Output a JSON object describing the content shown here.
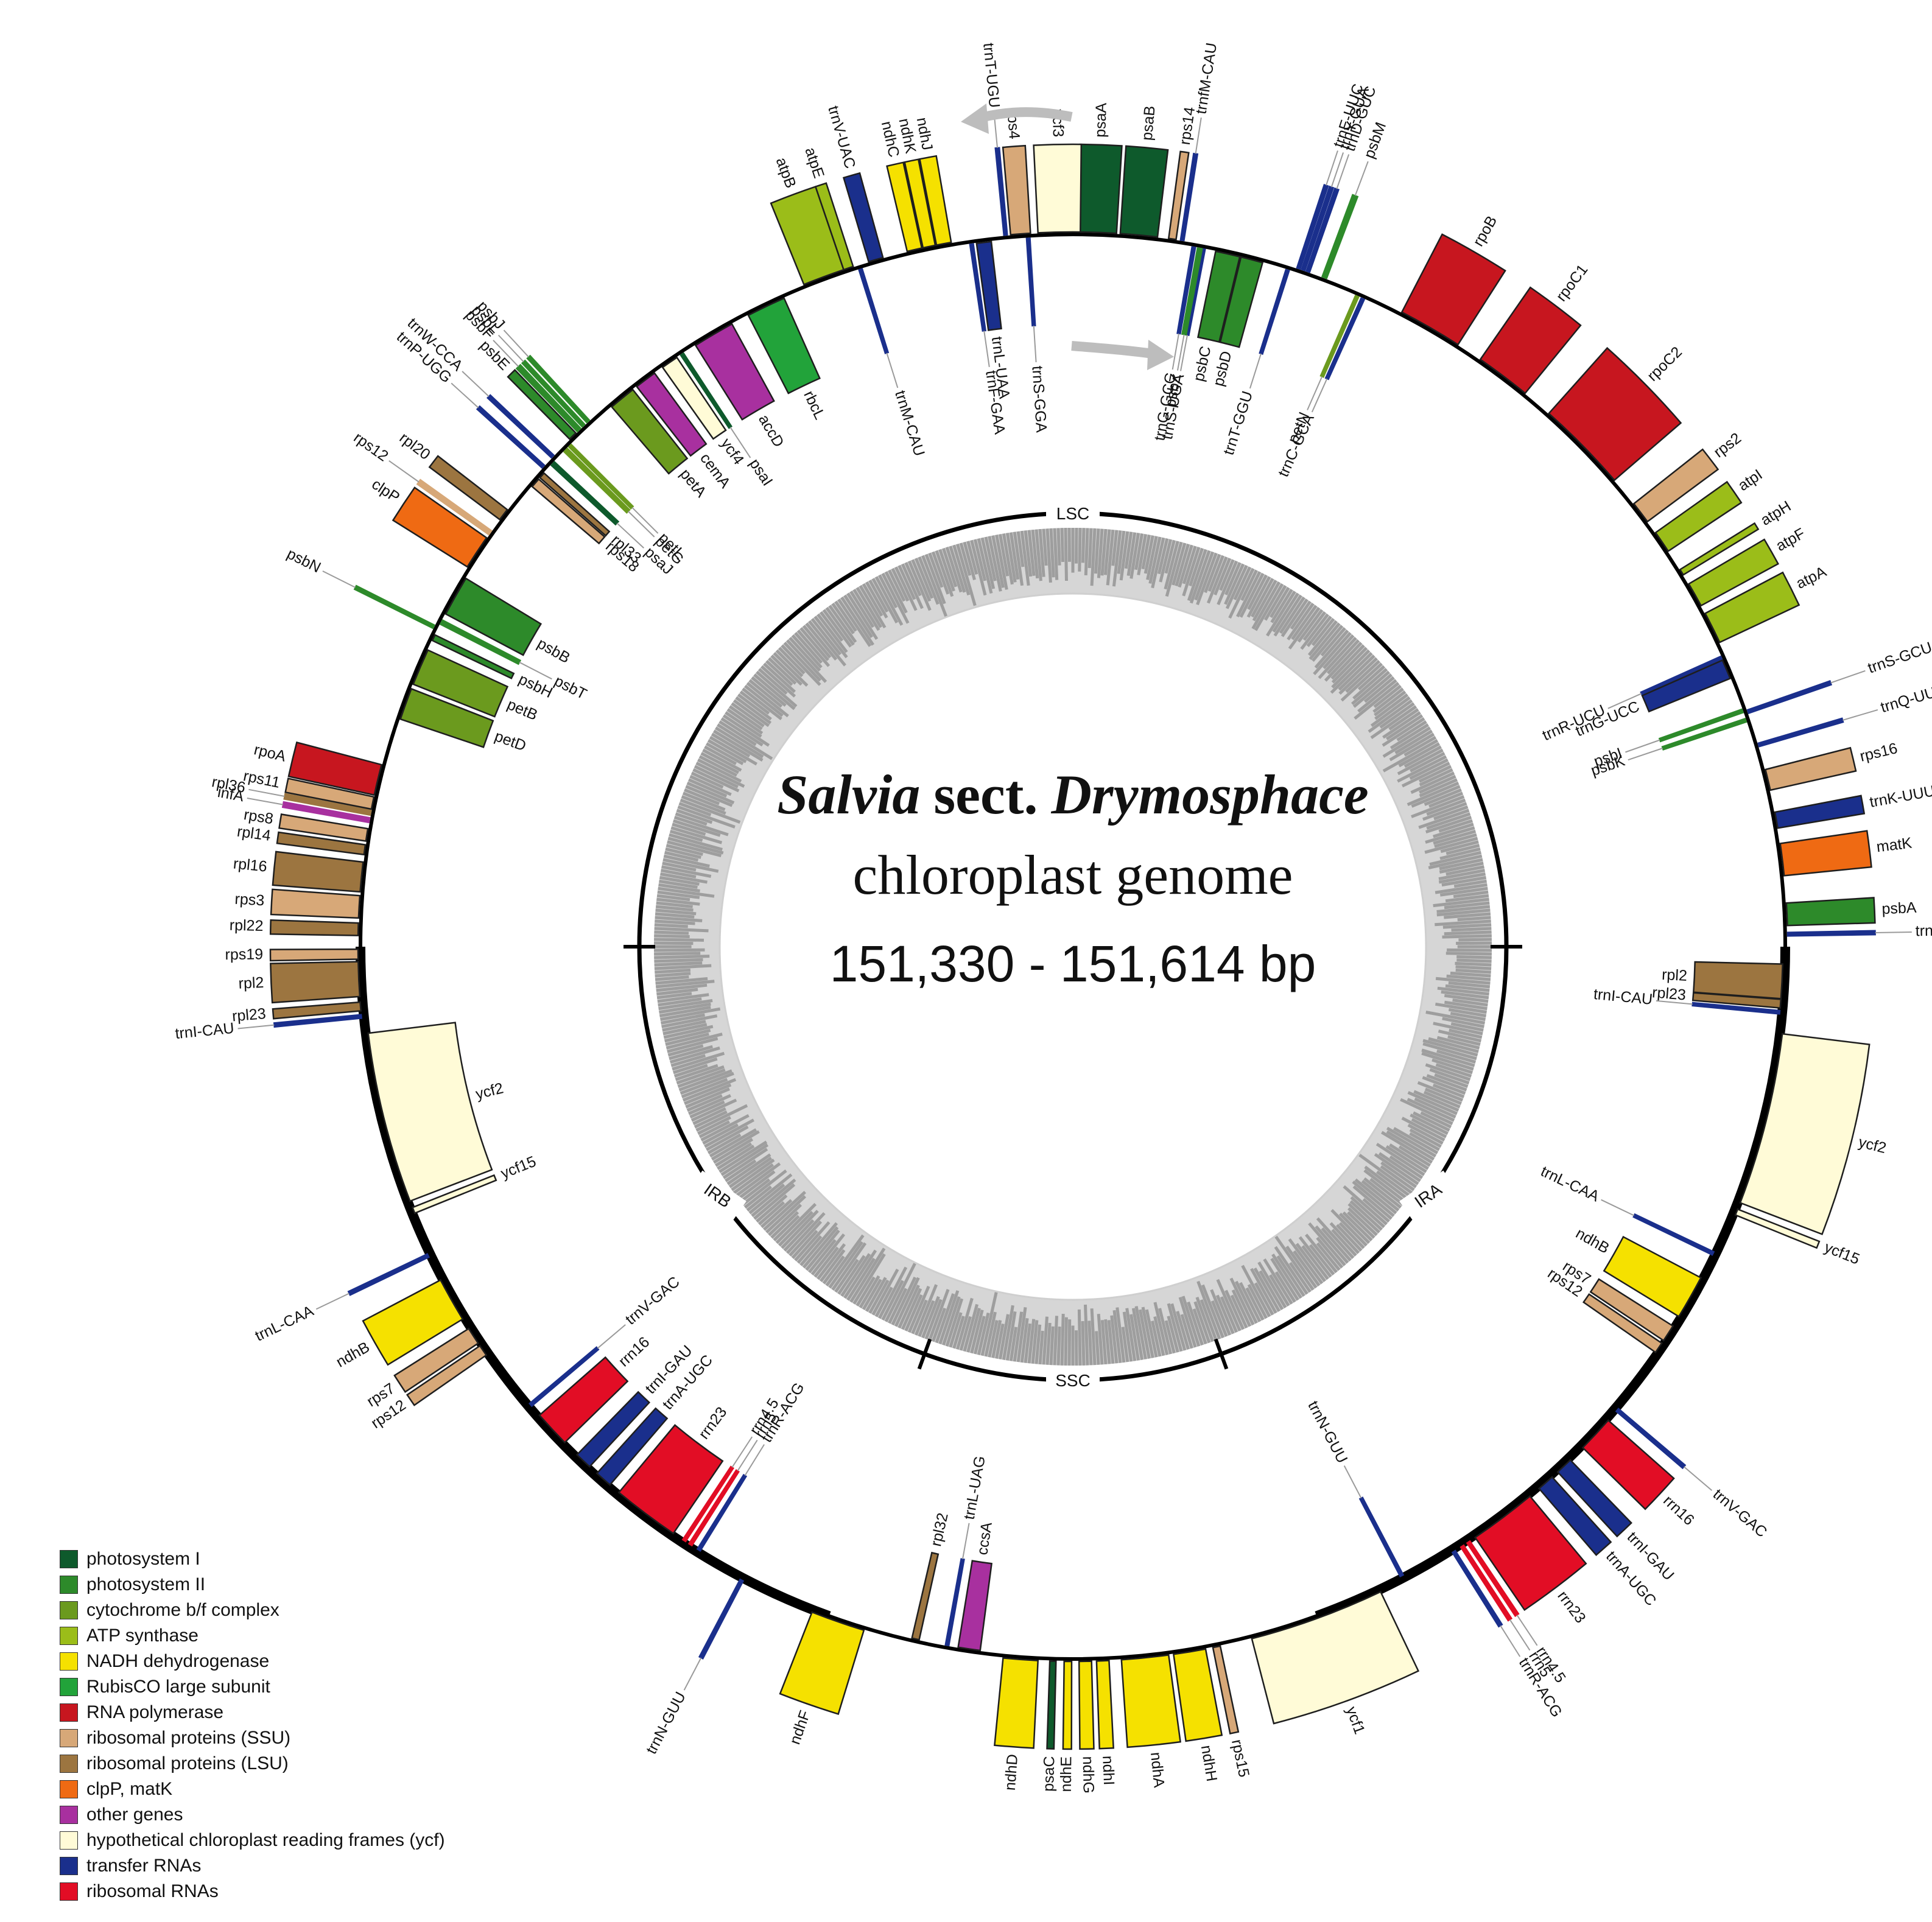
{
  "title": {
    "genus": "Salvia",
    "sect": "sect.",
    "section_name": "Drymosphace",
    "line2": "chloroplast genome",
    "line3": "151,330 - 151,614 bp"
  },
  "regions": [
    "LSC",
    "IRA",
    "SSC",
    "IRB"
  ],
  "legend": [
    {
      "label": "photosystem I",
      "color": "#0e5a2c"
    },
    {
      "label": "photosystem II",
      "color": "#2d8a2a"
    },
    {
      "label": "cytochrome b/f complex",
      "color": "#6b9a1e"
    },
    {
      "label": "ATP synthase",
      "color": "#9bbd19"
    },
    {
      "label": "NADH dehydrogenase",
      "color": "#f5e100"
    },
    {
      "label": "RubisCO large subunit",
      "color": "#22a33a"
    },
    {
      "label": "RNA polymerase",
      "color": "#c7161f"
    },
    {
      "label": "ribosomal proteins (SSU)",
      "color": "#d7a878"
    },
    {
      "label": "ribosomal proteins (LSU)",
      "color": "#9c7540"
    },
    {
      "label": "clpP, matK",
      "color": "#ef6a13"
    },
    {
      "label": "other genes",
      "color": "#a8309f"
    },
    {
      "label": "hypothetical chloroplast reading frames (ycf)",
      "color": "#fffbd7"
    },
    {
      "label": "transfer RNAs",
      "color": "#1a2f8c"
    },
    {
      "label": "ribosomal RNAs",
      "color": "#e20d25"
    }
  ],
  "genes": [
    {
      "name": "psaA",
      "cat": 0,
      "a": 2.0,
      "w": 3.0,
      "side": "out"
    },
    {
      "name": "psaB",
      "cat": 0,
      "a": 5.3,
      "w": 3.0,
      "side": "out"
    },
    {
      "name": "rps14",
      "cat": 7,
      "a": 8.0,
      "w": 0.6,
      "side": "out"
    },
    {
      "name": "trnfM-CAU",
      "cat": 12,
      "a": 8.8,
      "w": 0.3,
      "side": "out"
    },
    {
      "name": "trnS-UGA",
      "cat": 12,
      "a": 10.6,
      "w": 0.3,
      "side": "in"
    },
    {
      "name": "trnG-GCC",
      "cat": 12,
      "a": 9.8,
      "w": 0.3,
      "side": "in"
    },
    {
      "name": "psbZ",
      "cat": 1,
      "a": 10.3,
      "w": 0.4,
      "side": "in"
    },
    {
      "name": "psbC",
      "cat": 1,
      "a": 12.6,
      "w": 2.0,
      "side": "in"
    },
    {
      "name": "psbD",
      "cat": 1,
      "a": 14.6,
      "w": 1.8,
      "side": "in"
    },
    {
      "name": "trnT-GGU",
      "cat": 12,
      "a": 17.6,
      "w": 0.3,
      "side": "in"
    },
    {
      "name": "trnE-UUC",
      "cat": 12,
      "a": 18.4,
      "w": 0.3,
      "side": "out"
    },
    {
      "name": "trnY-GUA",
      "cat": 12,
      "a": 18.8,
      "w": 0.3,
      "side": "out"
    },
    {
      "name": "trnD-GUC",
      "cat": 12,
      "a": 19.2,
      "w": 0.3,
      "side": "out"
    },
    {
      "name": "psbM",
      "cat": 1,
      "a": 20.6,
      "w": 0.4,
      "side": "out"
    },
    {
      "name": "petN",
      "cat": 2,
      "a": 23.6,
      "w": 0.3,
      "side": "in"
    },
    {
      "name": "trnC-GCA",
      "cat": 12,
      "a": 24.1,
      "w": 0.3,
      "side": "in"
    },
    {
      "name": "rpoB",
      "cat": 6,
      "a": 30.0,
      "w": 5.2,
      "side": "out"
    },
    {
      "name": "rpoC1",
      "cat": 6,
      "a": 37.0,
      "w": 4.5,
      "side": "out"
    },
    {
      "name": "rpoC2",
      "cat": 6,
      "a": 45.5,
      "w": 7.5,
      "side": "out"
    },
    {
      "name": "rps2",
      "cat": 7,
      "a": 52.6,
      "w": 1.8,
      "side": "out"
    },
    {
      "name": "atpI",
      "cat": 3,
      "a": 55.5,
      "w": 1.8,
      "side": "out"
    },
    {
      "name": "atpH",
      "cat": 3,
      "a": 58.4,
      "w": 0.5,
      "side": "out"
    },
    {
      "name": "atpF",
      "cat": 3,
      "a": 60.5,
      "w": 2.0,
      "side": "out"
    },
    {
      "name": "atpA",
      "cat": 3,
      "a": 63.5,
      "w": 2.6,
      "side": "out"
    },
    {
      "name": "trnR-UCU",
      "cat": 12,
      "a": 66.0,
      "w": 0.3,
      "side": "in"
    },
    {
      "name": "trnG-UCC",
      "cat": 12,
      "a": 67.0,
      "w": 1.6,
      "side": "in"
    },
    {
      "name": "trnS-GCU",
      "cat": 12,
      "a": 70.8,
      "w": 0.3,
      "side": "out"
    },
    {
      "name": "psbI",
      "cat": 1,
      "a": 70.6,
      "w": 0.3,
      "side": "in"
    },
    {
      "name": "psbK",
      "cat": 1,
      "a": 71.4,
      "w": 0.3,
      "side": "in"
    },
    {
      "name": "trnQ-UUG",
      "cat": 12,
      "a": 73.6,
      "w": 0.3,
      "side": "out"
    },
    {
      "name": "rps16",
      "cat": 7,
      "a": 76.5,
      "w": 1.7,
      "side": "out"
    },
    {
      "name": "trnK-UUU",
      "cat": 12,
      "a": 79.8,
      "w": 1.3,
      "side": "out"
    },
    {
      "name": "matK",
      "cat": 9,
      "a": 83.0,
      "w": 2.6,
      "side": "out"
    },
    {
      "name": "psbA",
      "cat": 1,
      "a": 87.4,
      "w": 1.8,
      "side": "out"
    },
    {
      "name": "trnH-GUG",
      "cat": 12,
      "a": 89.0,
      "w": 0.3,
      "side": "out"
    },
    {
      "name": "rpl2",
      "cat": 8,
      "a": 92.8,
      "w": 2.8,
      "side": "in"
    },
    {
      "name": "rpl23",
      "cat": 8,
      "a": 94.6,
      "w": 0.7,
      "side": "in"
    },
    {
      "name": "trnI-CAU",
      "cat": 12,
      "a": 95.3,
      "w": 0.3,
      "side": "in"
    },
    {
      "name": "ycf2",
      "cat": 11,
      "a": 104.0,
      "w": 14.0,
      "side": "out"
    },
    {
      "name": "ycf15",
      "cat": 11,
      "a": 111.8,
      "w": 0.5,
      "side": "out"
    },
    {
      "name": "trnL-CAA",
      "cat": 12,
      "a": 115.6,
      "w": 0.3,
      "side": "in"
    },
    {
      "name": "ndhB",
      "cat": 4,
      "a": 119.6,
      "w": 3.6,
      "side": "in"
    },
    {
      "name": "rps7",
      "cat": 7,
      "a": 123.0,
      "w": 1.4,
      "side": "in"
    },
    {
      "name": "rps12",
      "cat": 7,
      "a": 124.4,
      "w": 0.9,
      "side": "in"
    },
    {
      "name": "trnV-GAC",
      "cat": 12,
      "a": 130.4,
      "w": 0.3,
      "side": "out"
    },
    {
      "name": "rrn16",
      "cat": 13,
      "a": 133.0,
      "w": 3.0,
      "side": "out"
    },
    {
      "name": "trnI-GAU",
      "cat": 12,
      "a": 136.6,
      "w": 1.4,
      "side": "out"
    },
    {
      "name": "trnA-UGC",
      "cat": 12,
      "a": 138.6,
      "w": 1.4,
      "side": "out"
    },
    {
      "name": "rrn23",
      "cat": 13,
      "a": 143.0,
      "w": 5.5,
      "side": "out"
    },
    {
      "name": "rrn4.5",
      "cat": 13,
      "a": 146.4,
      "w": 0.3,
      "side": "out"
    },
    {
      "name": "rrn5",
      "cat": 13,
      "a": 147.0,
      "w": 0.3,
      "side": "out"
    },
    {
      "name": "trnR-ACG",
      "cat": 12,
      "a": 147.8,
      "w": 0.3,
      "side": "out"
    },
    {
      "name": "trnN-GUU",
      "cat": 12,
      "a": 152.4,
      "w": 0.3,
      "side": "in"
    },
    {
      "name": "ycf1",
      "cat": 11,
      "a": 160.0,
      "w": 11.0,
      "side": "out"
    },
    {
      "name": "rps15",
      "cat": 7,
      "a": 168.4,
      "w": 0.6,
      "side": "out"
    },
    {
      "name": "ndhH",
      "cat": 4,
      "a": 170.6,
      "w": 2.6,
      "side": "out"
    },
    {
      "name": "ndhA",
      "cat": 4,
      "a": 174.2,
      "w": 3.8,
      "side": "out"
    },
    {
      "name": "ndhI",
      "cat": 4,
      "a": 177.6,
      "w": 1.0,
      "side": "out"
    },
    {
      "name": "ndhG",
      "cat": 4,
      "a": 179.0,
      "w": 1.0,
      "side": "out"
    },
    {
      "name": "ndhE",
      "cat": 4,
      "a": 180.4,
      "w": 0.6,
      "side": "out"
    },
    {
      "name": "psaC",
      "cat": 0,
      "a": 181.6,
      "w": 0.5,
      "side": "out"
    },
    {
      "name": "ndhD",
      "cat": 4,
      "a": 184.2,
      "w": 2.8,
      "side": "out"
    },
    {
      "name": "ccsA",
      "cat": 10,
      "a": 188.4,
      "w": 1.8,
      "side": "in"
    },
    {
      "name": "trnL-UAG",
      "cat": 12,
      "a": 190.2,
      "w": 0.3,
      "side": "in"
    },
    {
      "name": "rpl32",
      "cat": 8,
      "a": 192.8,
      "w": 0.6,
      "side": "in"
    },
    {
      "name": "ndhF",
      "cat": 4,
      "a": 199.2,
      "w": 4.4,
      "side": "out"
    },
    {
      "name": "trnN-GUU",
      "cat": 12,
      "a": 207.6,
      "w": 0.3,
      "side": "out"
    },
    {
      "name": "trnR-ACG",
      "cat": 12,
      "a": 211.8,
      "w": 0.3,
      "side": "in"
    },
    {
      "name": "rrn5",
      "cat": 13,
      "a": 212.6,
      "w": 0.3,
      "side": "in"
    },
    {
      "name": "rrn4.5",
      "cat": 13,
      "a": 213.2,
      "w": 0.3,
      "side": "in"
    },
    {
      "name": "rrn23",
      "cat": 13,
      "a": 217.0,
      "w": 5.5,
      "side": "in"
    },
    {
      "name": "trnA-UGC",
      "cat": 12,
      "a": 221.4,
      "w": 1.4,
      "side": "in"
    },
    {
      "name": "trnI-GAU",
      "cat": 12,
      "a": 223.6,
      "w": 1.4,
      "side": "in"
    },
    {
      "name": "rrn16",
      "cat": 13,
      "a": 227.2,
      "w": 3.0,
      "side": "in"
    },
    {
      "name": "trnV-GAC",
      "cat": 12,
      "a": 229.8,
      "w": 0.3,
      "side": "in"
    },
    {
      "name": "rps12",
      "cat": 7,
      "a": 235.6,
      "w": 0.9,
      "side": "out"
    },
    {
      "name": "rps7",
      "cat": 7,
      "a": 237.0,
      "w": 1.4,
      "side": "out"
    },
    {
      "name": "ndhB",
      "cat": 4,
      "a": 240.4,
      "w": 3.6,
      "side": "out"
    },
    {
      "name": "trnL-CAA",
      "cat": 12,
      "a": 244.4,
      "w": 0.3,
      "side": "out"
    },
    {
      "name": "ycf15",
      "cat": 11,
      "a": 248.2,
      "w": 0.5,
      "side": "in"
    },
    {
      "name": "ycf2",
      "cat": 11,
      "a": 256.0,
      "w": 14.0,
      "side": "in"
    },
    {
      "name": "trnI-CAU",
      "cat": 12,
      "a": 264.4,
      "w": 0.3,
      "side": "out"
    },
    {
      "name": "rpl23",
      "cat": 8,
      "a": 265.2,
      "w": 0.7,
      "side": "out"
    },
    {
      "name": "rpl2",
      "cat": 8,
      "a": 267.4,
      "w": 2.8,
      "side": "out"
    },
    {
      "name": "rps19",
      "cat": 7,
      "a": 269.4,
      "w": 0.8,
      "side": "out"
    },
    {
      "name": "rpl22",
      "cat": 8,
      "a": 271.4,
      "w": 1.0,
      "side": "out"
    },
    {
      "name": "rps3",
      "cat": 7,
      "a": 273.2,
      "w": 1.8,
      "side": "out"
    },
    {
      "name": "rpl16",
      "cat": 8,
      "a": 275.6,
      "w": 2.4,
      "side": "out"
    },
    {
      "name": "rpl14",
      "cat": 8,
      "a": 277.8,
      "w": 0.8,
      "side": "out"
    },
    {
      "name": "rps8",
      "cat": 7,
      "a": 279.0,
      "w": 1.0,
      "side": "out"
    },
    {
      "name": "infA",
      "cat": 10,
      "a": 280.2,
      "w": 0.4,
      "side": "out"
    },
    {
      "name": "rpl36",
      "cat": 8,
      "a": 280.8,
      "w": 0.4,
      "side": "out"
    },
    {
      "name": "rps11",
      "cat": 7,
      "a": 281.6,
      "w": 1.0,
      "side": "out"
    },
    {
      "name": "rpoA",
      "cat": 6,
      "a": 283.5,
      "w": 2.5,
      "side": "out"
    },
    {
      "name": "petD",
      "cat": 2,
      "a": 290.0,
      "w": 2.6,
      "side": "in"
    },
    {
      "name": "petB",
      "cat": 2,
      "a": 293.2,
      "w": 3.0,
      "side": "in"
    },
    {
      "name": "psbH",
      "cat": 1,
      "a": 295.8,
      "w": 0.5,
      "side": "in"
    },
    {
      "name": "psbN",
      "cat": 1,
      "a": 296.6,
      "w": 0.3,
      "side": "out"
    },
    {
      "name": "psbT",
      "cat": 1,
      "a": 297.2,
      "w": 0.4,
      "side": "in"
    },
    {
      "name": "psbB",
      "cat": 1,
      "a": 299.6,
      "w": 3.3,
      "side": "in"
    },
    {
      "name": "clpP",
      "cat": 9,
      "a": 303.5,
      "w": 2.8,
      "side": "out"
    },
    {
      "name": "rps12",
      "cat": 7,
      "a": 305.4,
      "w": 0.4,
      "side": "out"
    },
    {
      "name": "rpl20",
      "cat": 8,
      "a": 307.2,
      "w": 1.0,
      "side": "out"
    },
    {
      "name": "rps18",
      "cat": 7,
      "a": 310.8,
      "w": 0.8,
      "side": "in"
    },
    {
      "name": "rpl33",
      "cat": 8,
      "a": 311.6,
      "w": 0.5,
      "side": "in"
    },
    {
      "name": "trnP-UGG",
      "cat": 12,
      "a": 312.2,
      "w": 0.3,
      "side": "out"
    },
    {
      "name": "psaJ",
      "cat": 0,
      "a": 312.9,
      "w": 0.4,
      "side": "in"
    },
    {
      "name": "trnW-CCA",
      "cat": 12,
      "a": 313.3,
      "w": 0.3,
      "side": "out"
    },
    {
      "name": "petG",
      "cat": 2,
      "a": 314.4,
      "w": 0.4,
      "side": "in"
    },
    {
      "name": "petL",
      "cat": 2,
      "a": 314.9,
      "w": 0.3,
      "side": "in"
    },
    {
      "name": "psbE",
      "cat": 1,
      "a": 315.6,
      "w": 0.7,
      "side": "out"
    },
    {
      "name": "psbF",
      "cat": 1,
      "a": 316.3,
      "w": 0.4,
      "side": "out"
    },
    {
      "name": "psbL",
      "cat": 1,
      "a": 316.8,
      "w": 0.3,
      "side": "out"
    },
    {
      "name": "psbJ",
      "cat": 1,
      "a": 317.3,
      "w": 0.3,
      "side": "out"
    },
    {
      "name": "petA",
      "cat": 2,
      "a": 320.6,
      "w": 2.2,
      "side": "in"
    },
    {
      "name": "cemA",
      "cat": 10,
      "a": 323.0,
      "w": 1.8,
      "side": "in"
    },
    {
      "name": "ycf4",
      "cat": 11,
      "a": 325.4,
      "w": 1.4,
      "side": "in"
    },
    {
      "name": "psaI",
      "cat": 0,
      "a": 326.6,
      "w": 0.3,
      "side": "in"
    },
    {
      "name": "accD",
      "cat": 10,
      "a": 329.6,
      "w": 3.4,
      "side": "in"
    },
    {
      "name": "rbcL",
      "cat": 5,
      "a": 334.4,
      "w": 3.2,
      "side": "in"
    },
    {
      "name": "atpB",
      "cat": 3,
      "a": 339.6,
      "w": 3.4,
      "side": "out"
    },
    {
      "name": "atpE",
      "cat": 3,
      "a": 341.7,
      "w": 0.8,
      "side": "out"
    },
    {
      "name": "trnM-CAU",
      "cat": 12,
      "a": 342.6,
      "w": 0.3,
      "side": "in"
    },
    {
      "name": "trnV-UAC",
      "cat": 12,
      "a": 344.0,
      "w": 1.2,
      "side": "out"
    },
    {
      "name": "ndhC",
      "cat": 4,
      "a": 347.2,
      "w": 1.2,
      "side": "out"
    },
    {
      "name": "ndhK",
      "cat": 4,
      "a": 348.4,
      "w": 1.0,
      "side": "out"
    },
    {
      "name": "ndhJ",
      "cat": 4,
      "a": 349.6,
      "w": 1.2,
      "side": "out"
    },
    {
      "name": "trnF-GAA",
      "cat": 12,
      "a": 351.8,
      "w": 0.3,
      "side": "in"
    },
    {
      "name": "trnL-UAA",
      "cat": 12,
      "a": 352.8,
      "w": 1.2,
      "side": "in"
    },
    {
      "name": "trnT-UGU",
      "cat": 12,
      "a": 354.6,
      "w": 0.3,
      "side": "out"
    },
    {
      "name": "rps4",
      "cat": 7,
      "a": 355.8,
      "w": 1.6,
      "side": "out"
    },
    {
      "name": "trnS-GGA",
      "cat": 12,
      "a": 356.4,
      "w": 0.3,
      "side": "in"
    },
    {
      "name": "ycf3",
      "cat": 11,
      "a": 358.9,
      "w": 3.4,
      "side": "out"
    }
  ]
}
